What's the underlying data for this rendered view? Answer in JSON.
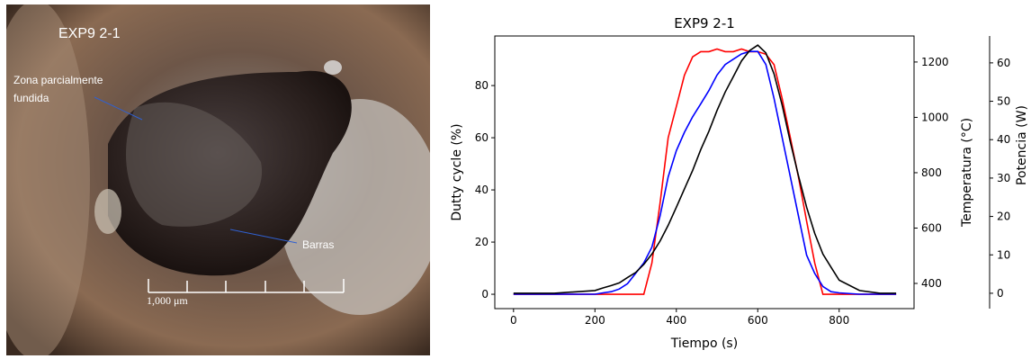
{
  "photo": {
    "title": "EXP9 2-1",
    "annotations": [
      {
        "lines": [
          "Zona parcialmente",
          "fundida"
        ]
      },
      {
        "lines": [
          "Barras"
        ]
      }
    ],
    "scale_label": "1,000 μm"
  },
  "chart_data": {
    "type": "line",
    "title": "EXP9 2-1",
    "x_label": "Tiempo (s)",
    "y_label": "Dutty cycle (%)",
    "y2_label": "Temperatura (°C)",
    "y3_label": "Potencia (W)",
    "x": [
      0,
      100,
      200,
      220,
      240,
      260,
      280,
      300,
      320,
      340,
      360,
      380,
      400,
      420,
      440,
      460,
      480,
      500,
      520,
      540,
      560,
      580,
      600,
      620,
      640,
      660,
      680,
      700,
      720,
      740,
      760,
      780,
      800,
      850,
      900,
      940
    ],
    "series": [
      {
        "color": "#ff0000",
        "axis": "y",
        "values": [
          0,
          0,
          0,
          0,
          0,
          0,
          0,
          0,
          0,
          12,
          35,
          60,
          72,
          84,
          91,
          93,
          93,
          94,
          93,
          93,
          94,
          93,
          93,
          92,
          88,
          75,
          60,
          45,
          28,
          12,
          0,
          0,
          0,
          0,
          0,
          0
        ]
      },
      {
        "color": "#0000ff",
        "axis": "y2",
        "values": [
          361,
          361,
          361,
          366,
          370,
          380,
          399,
          436,
          474,
          531,
          644,
          785,
          880,
          946,
          1002,
          1049,
          1097,
          1153,
          1191,
          1210,
          1229,
          1238,
          1238,
          1191,
          1068,
          927,
          785,
          644,
          502,
          436,
          389,
          370,
          366,
          361,
          361,
          361
        ]
      },
      {
        "color": "#000000",
        "axis": "y3",
        "values": [
          0,
          0,
          0.7,
          1.4,
          2,
          2.7,
          4.1,
          5.4,
          7.5,
          10.2,
          13.6,
          17.7,
          22.4,
          27.2,
          32,
          37.4,
          42.2,
          47.6,
          52.4,
          56.4,
          60.5,
          63.2,
          64.6,
          62.6,
          57.1,
          49,
          39.4,
          30.6,
          22.4,
          15.6,
          10.2,
          6.8,
          3.4,
          0.7,
          0,
          0
        ]
      }
    ],
    "xlim": [
      -46,
      984
    ],
    "xticks": [
      0,
      200,
      400,
      600,
      800
    ],
    "ylim": [
      -5.5,
      99
    ],
    "yticks": [
      0,
      20,
      40,
      60,
      80
    ],
    "y2lim": [
      309,
      1294
    ],
    "y2ticks": [
      400,
      600,
      800,
      1000,
      1200
    ],
    "y3lim": [
      -4,
      67
    ],
    "y3ticks": [
      0,
      10,
      20,
      30,
      40,
      50,
      60
    ]
  }
}
